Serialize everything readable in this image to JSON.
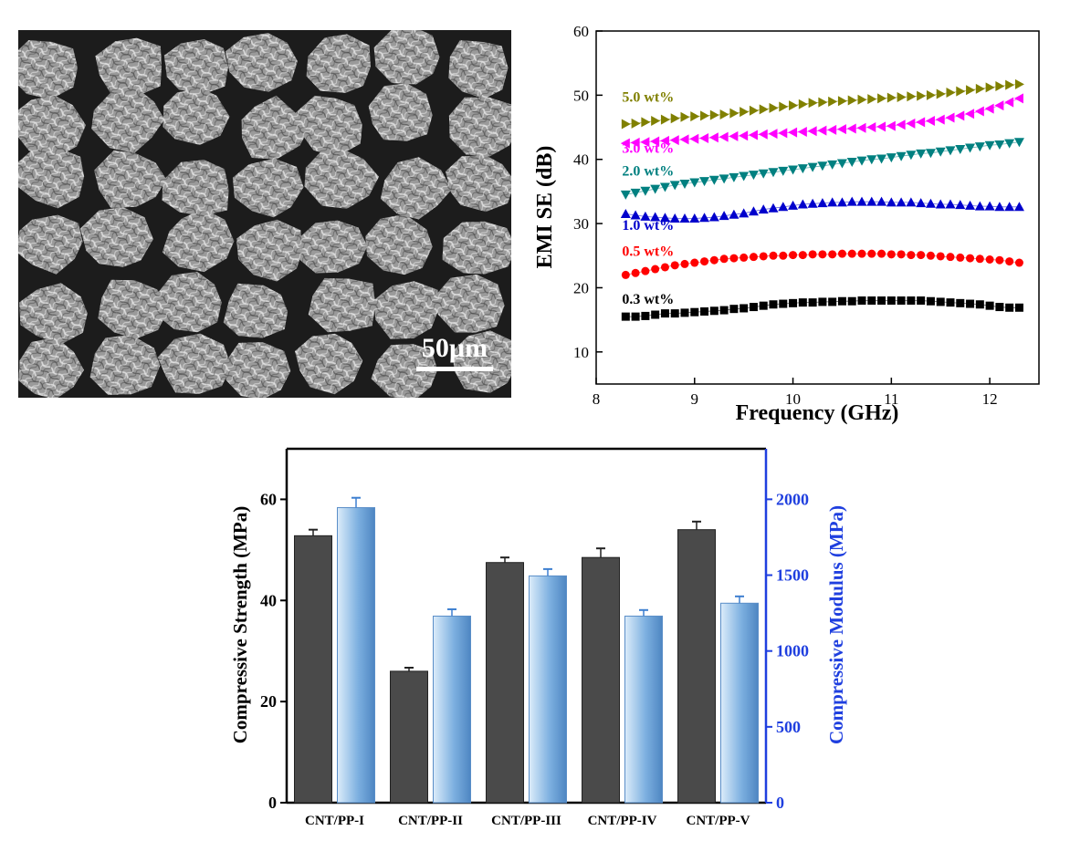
{
  "micrograph": {
    "scale_bar_label": "50µm"
  },
  "chart_data": [
    {
      "type": "scatter",
      "xlabel": "Frequency (GHz)",
      "ylabel": "EMI SE (dB)",
      "xlim": [
        8,
        12.5
      ],
      "ylim": [
        5,
        60
      ],
      "xticks": [
        8,
        9,
        10,
        11,
        12
      ],
      "yticks": [
        10,
        20,
        30,
        40,
        50,
        60
      ],
      "grid": false,
      "x": [
        8.3,
        8.4,
        8.5,
        8.6,
        8.7,
        8.8,
        8.9,
        9.0,
        9.1,
        9.2,
        9.3,
        9.4,
        9.5,
        9.6,
        9.7,
        9.8,
        9.9,
        10.0,
        10.1,
        10.2,
        10.3,
        10.4,
        10.5,
        10.6,
        10.7,
        10.8,
        10.9,
        11.0,
        11.1,
        11.2,
        11.3,
        11.4,
        11.5,
        11.6,
        11.7,
        11.8,
        11.9,
        12.0,
        12.1,
        12.2,
        12.3
      ],
      "series": [
        {
          "name": "0.3 wt%",
          "marker": "square",
          "color": "#000000",
          "label_pos": [
            8.3,
            17.5
          ],
          "y": [
            15.5,
            15.5,
            15.6,
            15.8,
            16.0,
            16.0,
            16.1,
            16.2,
            16.3,
            16.4,
            16.5,
            16.7,
            16.8,
            17.0,
            17.2,
            17.4,
            17.5,
            17.6,
            17.7,
            17.7,
            17.8,
            17.8,
            17.9,
            17.9,
            18.0,
            18.0,
            18.0,
            18.0,
            18.0,
            18.0,
            18.0,
            17.9,
            17.8,
            17.7,
            17.6,
            17.5,
            17.4,
            17.2,
            17.0,
            16.9,
            16.9
          ]
        },
        {
          "name": "0.5 wt%",
          "marker": "circle",
          "color": "#ff0000",
          "label_pos": [
            8.3,
            25.0
          ],
          "y": [
            22.0,
            22.3,
            22.6,
            22.9,
            23.2,
            23.5,
            23.7,
            23.9,
            24.1,
            24.3,
            24.5,
            24.6,
            24.7,
            24.8,
            24.9,
            25.0,
            25.0,
            25.1,
            25.1,
            25.2,
            25.2,
            25.2,
            25.3,
            25.3,
            25.3,
            25.3,
            25.3,
            25.2,
            25.2,
            25.1,
            25.1,
            25.0,
            24.9,
            24.8,
            24.7,
            24.6,
            24.5,
            24.4,
            24.3,
            24.1,
            23.9
          ]
        },
        {
          "name": "1.0 wt%",
          "marker": "triangle-up",
          "color": "#0000cc",
          "label_pos": [
            8.3,
            29.0
          ],
          "y": [
            31.5,
            31.3,
            31.1,
            31.0,
            30.9,
            30.8,
            30.8,
            30.8,
            30.9,
            31.0,
            31.2,
            31.4,
            31.6,
            31.9,
            32.2,
            32.4,
            32.6,
            32.8,
            33.0,
            33.1,
            33.2,
            33.3,
            33.3,
            33.4,
            33.4,
            33.4,
            33.4,
            33.3,
            33.3,
            33.3,
            33.2,
            33.1,
            33.0,
            33.0,
            32.9,
            32.8,
            32.7,
            32.7,
            32.6,
            32.6,
            32.6
          ]
        },
        {
          "name": "2.0 wt%",
          "marker": "triangle-down",
          "color": "#008080",
          "label_pos": [
            8.3,
            37.5
          ],
          "y": [
            34.5,
            34.8,
            35.1,
            35.4,
            35.7,
            36.0,
            36.2,
            36.4,
            36.6,
            36.8,
            37.0,
            37.2,
            37.4,
            37.6,
            37.8,
            38.0,
            38.2,
            38.4,
            38.6,
            38.8,
            39.0,
            39.2,
            39.4,
            39.6,
            39.8,
            40.0,
            40.1,
            40.3,
            40.5,
            40.7,
            40.9,
            41.0,
            41.2,
            41.4,
            41.6,
            41.8,
            42.0,
            42.2,
            42.3,
            42.5,
            42.7
          ]
        },
        {
          "name": "3.0 wt%",
          "marker": "triangle-left",
          "color": "#ff00ff",
          "label_pos": [
            8.3,
            41.0
          ],
          "y": [
            42.5,
            42.6,
            42.7,
            42.8,
            42.9,
            43.0,
            43.1,
            43.2,
            43.3,
            43.4,
            43.5,
            43.6,
            43.7,
            43.8,
            43.9,
            44.0,
            44.1,
            44.2,
            44.3,
            44.4,
            44.5,
            44.6,
            44.7,
            44.8,
            44.9,
            45.0,
            45.1,
            45.2,
            45.4,
            45.6,
            45.8,
            46.0,
            46.2,
            46.5,
            46.8,
            47.1,
            47.5,
            47.9,
            48.4,
            48.9,
            49.5
          ]
        },
        {
          "name": "5.0 wt%",
          "marker": "triangle-right",
          "color": "#808000",
          "label_pos": [
            8.3,
            49.0
          ],
          "y": [
            45.5,
            45.6,
            45.8,
            46.0,
            46.2,
            46.4,
            46.6,
            46.7,
            46.8,
            46.9,
            47.0,
            47.2,
            47.4,
            47.6,
            47.8,
            48.0,
            48.2,
            48.4,
            48.6,
            48.8,
            48.9,
            49.0,
            49.1,
            49.2,
            49.3,
            49.4,
            49.5,
            49.6,
            49.7,
            49.8,
            49.9,
            50.0,
            50.2,
            50.4,
            50.6,
            50.8,
            51.0,
            51.2,
            51.4,
            51.6,
            51.7
          ]
        }
      ]
    },
    {
      "type": "bar",
      "categories": [
        "CNT/PP-I",
        "CNT/PP-II",
        "CNT/PP-III",
        "CNT/PP-IV",
        "CNT/PP-V"
      ],
      "ylabel": "Compressive Strength (MPa)",
      "y2label": "Compressive Modulus (MPa)",
      "ylim": [
        0,
        70
      ],
      "y2lim": [
        0,
        2333
      ],
      "yticks": [
        0,
        20,
        40,
        60
      ],
      "y2ticks": [
        0,
        500,
        1000,
        1500,
        2000
      ],
      "legend": "none",
      "series": [
        {
          "axis": "left",
          "color": "#4a4a4a",
          "values": [
            52.8,
            26.0,
            47.5,
            48.5,
            54.0
          ],
          "errors": [
            1.2,
            0.7,
            1.0,
            1.8,
            1.6
          ]
        },
        {
          "axis": "right",
          "color": "#7db0e0",
          "values": [
            1945,
            1230,
            1495,
            1230,
            1315
          ],
          "errors": [
            65,
            45,
            45,
            40,
            45
          ]
        }
      ]
    }
  ]
}
